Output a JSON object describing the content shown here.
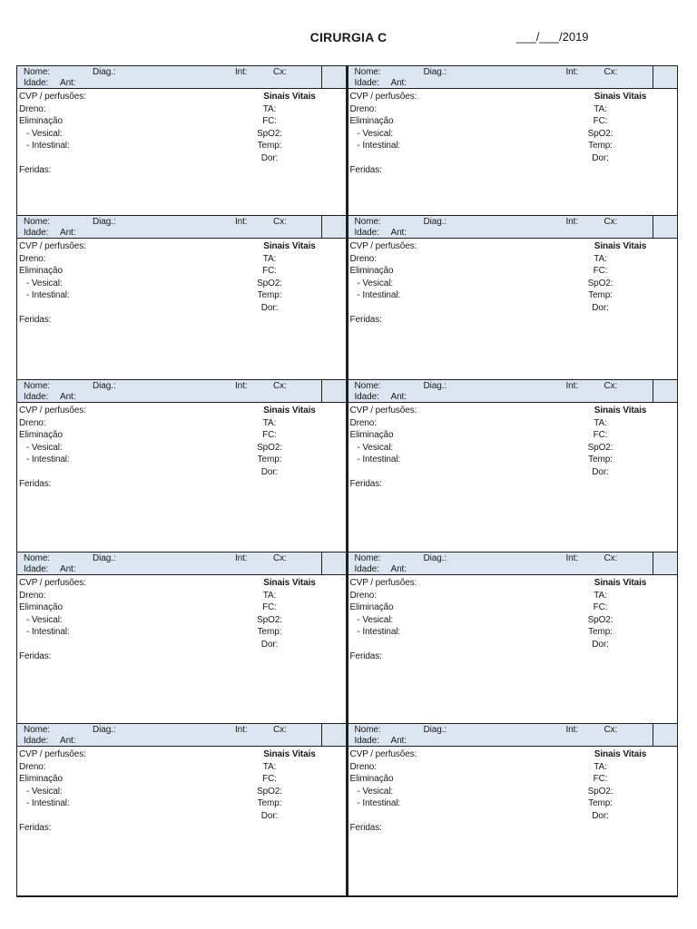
{
  "header": {
    "title": "CIRURGIA C",
    "date": "___/___/2019"
  },
  "grid": {
    "rows": 5,
    "columns": 2,
    "card_count": 10
  },
  "card_labels": {
    "nome": "Nome:",
    "diag": "Diag.:",
    "int": "Int:",
    "cx": "Cx:",
    "idade": "Idade:",
    "ant": "Ant:",
    "cvp": "CVP / perfusões:",
    "dreno": "Dreno:",
    "eliminacao": "Eliminação",
    "vesical": "- Vesical:",
    "intestinal": "- Intestinal:",
    "feridas": "Feridas:",
    "sinais_vitais": "Sinais Vitais",
    "ta": "TA:",
    "fc": "FC:",
    "spo2": "SpO2:",
    "temp": "Temp:",
    "dor": "Dor:"
  },
  "colors": {
    "header_band": "#dce6f1",
    "border": "#1f1f1f",
    "text": "#1a1a1a",
    "background": "#ffffff"
  }
}
